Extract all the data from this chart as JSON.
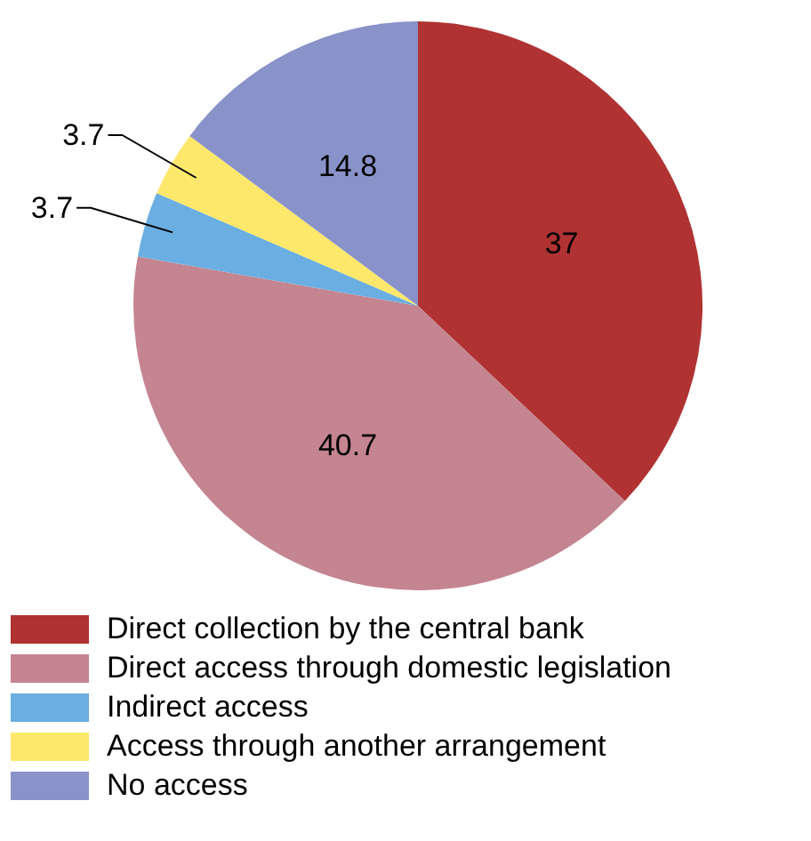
{
  "chart_data": {
    "type": "pie",
    "categories": [
      "Direct collection by the central bank",
      "Direct access through domestic legislation",
      "Indirect access",
      "Access through another arrangement",
      "No access"
    ],
    "values": [
      37,
      40.7,
      3.7,
      3.7,
      14.8
    ],
    "colors": [
      "#b03232",
      "#c48590",
      "#6aaee2",
      "#fde86c",
      "#8a93c9"
    ],
    "data_labels": true,
    "legend": "bottom"
  }
}
